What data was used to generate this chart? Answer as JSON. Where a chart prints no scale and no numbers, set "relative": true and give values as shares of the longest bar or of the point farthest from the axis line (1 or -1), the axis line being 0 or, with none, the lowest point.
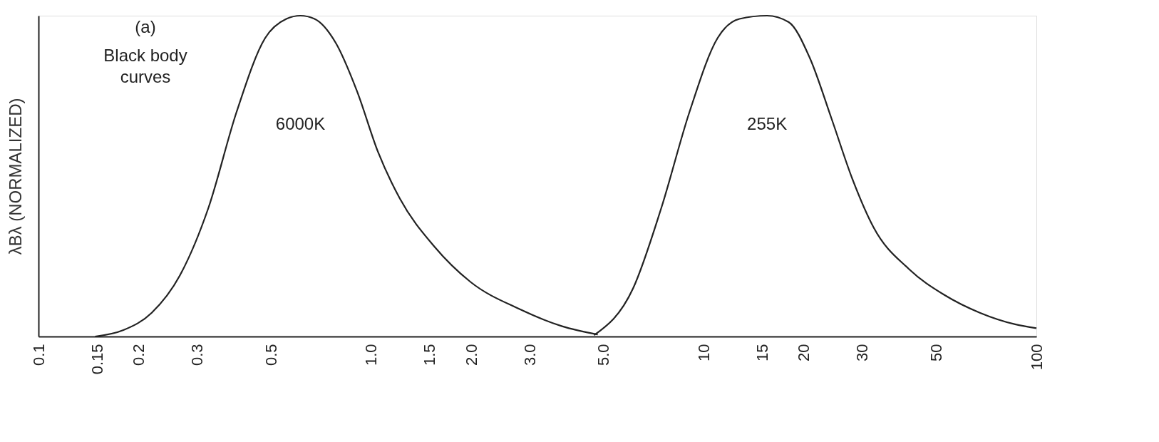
{
  "chart_data": {
    "type": "line",
    "relative": true,
    "log": "x",
    "ylabel": "λBλ (NORMALIZED)",
    "annotations": [
      "(a)",
      "Black body curves"
    ],
    "xlim": [
      0.1,
      100
    ],
    "xticks": [
      0.1,
      0.15,
      0.2,
      0.3,
      0.5,
      {
        "value": 1,
        "label": "1.0"
      },
      1.5,
      {
        "value": 2,
        "label": "2.0"
      },
      {
        "value": 3,
        "label": "3.0"
      },
      {
        "value": 5,
        "label": "5.0"
      },
      10,
      15,
      20,
      30,
      50,
      100
    ],
    "grid": false,
    "marker": "none",
    "line_style": "solid",
    "series": [
      {
        "name": "6000K",
        "color": "#222222",
        "x": [
          0.148,
          0.18,
          0.219,
          0.266,
          0.324,
          0.394,
          0.48,
          0.556,
          0.613,
          0.676,
          0.783,
          0.906,
          1.05,
          1.22,
          1.55,
          1.99,
          2.8,
          3.75,
          4.8
        ],
        "values": [
          0,
          0.02,
          0.074,
          0.19,
          0.4,
          0.7,
          0.93,
          0.99,
          1.0,
          0.99,
          0.915,
          0.766,
          0.574,
          0.43,
          0.28,
          0.17,
          0.085,
          0.032,
          0.006
        ]
      },
      {
        "name": "255K",
        "color": "#222222",
        "x": [
          4.68,
          6.13,
          7.45,
          9.06,
          11.0,
          12.8,
          15.5,
          18.0,
          20.8,
          24.2,
          28.0,
          32.4,
          41.4,
          52.8,
          67.6,
          86.3,
          100
        ],
        "values": [
          0.004,
          0.15,
          0.4,
          0.7,
          0.93,
          0.99,
          1.0,
          0.98,
          0.87,
          0.68,
          0.49,
          0.34,
          0.21,
          0.13,
          0.074,
          0.038,
          0.026
        ]
      }
    ]
  }
}
